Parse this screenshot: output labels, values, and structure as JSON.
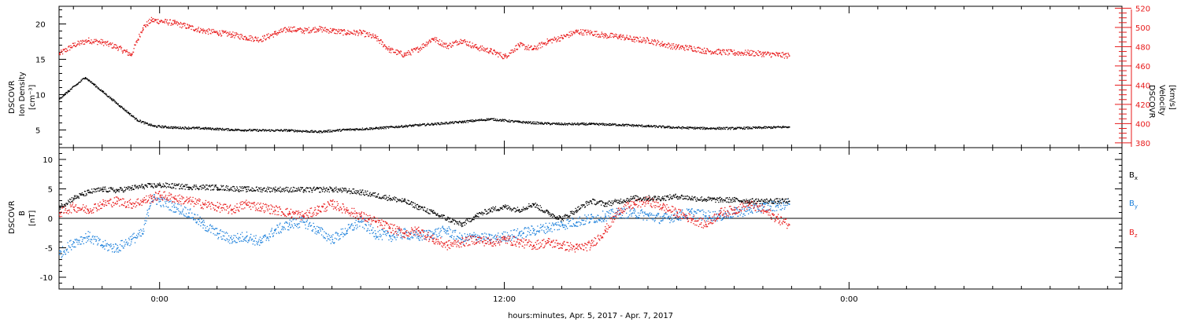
{
  "figure": {
    "xlabel": "hours:minutes, Apr.  5, 2017 - Apr.  7, 2017",
    "x_tick_labels": [
      "0:00",
      "12:00",
      "0:00"
    ]
  },
  "colors": {
    "black": "#000000",
    "red": "#e8191a",
    "blue": "#1a7fdb"
  },
  "chart_data": [
    {
      "type": "scatter",
      "panel": "top",
      "xlim_hours": [
        -3.5,
        33.5
      ],
      "x_ticks": [
        0,
        12,
        24
      ],
      "grid": false,
      "left_axis": {
        "label_lines": [
          "DSCOVR",
          "Ion Density",
          "[cm⁻³]"
        ],
        "ylim": [
          2.5,
          22.5
        ],
        "ticks": [
          5,
          10,
          15,
          20
        ],
        "color": "#000000"
      },
      "right_axis": {
        "label_lines": [
          "DSCOVR",
          "Velocity",
          "[km/s]"
        ],
        "ylim": [
          375,
          522
        ],
        "ticks": [
          380,
          400,
          420,
          440,
          460,
          480,
          500,
          520
        ],
        "color": "#e8191a"
      },
      "series": [
        {
          "axis": "left",
          "color": "#000000",
          "x": [
            -3.5,
            -3.2,
            -2.9,
            -2.6,
            -2.3,
            -2.0,
            -1.7,
            -1.4,
            -1.1,
            -0.8,
            -0.5,
            -0.2,
            0.5,
            1.5,
            2.5,
            3.5,
            4.5,
            5.5,
            6.5,
            7.5,
            8.5,
            9.5,
            10.5,
            11.5,
            12.5,
            13.3,
            14.0,
            15.0,
            16.0,
            17.0,
            18.0,
            19.0,
            20.0,
            21.0,
            21.9
          ],
          "y": [
            9.5,
            10.5,
            11.5,
            12.5,
            11.5,
            10.5,
            9.5,
            8.5,
            7.5,
            6.5,
            6.0,
            5.6,
            5.4,
            5.3,
            5.1,
            5.0,
            5.0,
            4.8,
            5.1,
            5.3,
            5.6,
            5.9,
            6.2,
            6.6,
            6.2,
            6.0,
            5.9,
            5.9,
            5.8,
            5.6,
            5.4,
            5.3,
            5.3,
            5.4,
            5.5
          ]
        },
        {
          "axis": "right",
          "color": "#e8191a",
          "x": [
            -3.5,
            -3.0,
            -2.5,
            -2.0,
            -1.5,
            -1.0,
            -0.6,
            -0.3,
            0.0,
            0.5,
            1.0,
            1.5,
            2.0,
            2.5,
            3.0,
            3.5,
            4.0,
            4.5,
            5.0,
            5.5,
            6.0,
            6.5,
            7.0,
            7.5,
            8.0,
            8.5,
            9.0,
            9.5,
            10.0,
            10.5,
            11.0,
            11.5,
            12.0,
            12.5,
            13.0,
            13.5,
            14.0,
            14.5,
            15.0,
            15.5,
            16.0,
            16.5,
            17.0,
            17.5,
            18.0,
            18.5,
            19.0,
            19.5,
            20.0,
            20.5,
            21.0,
            21.5,
            21.9
          ],
          "y": [
            473,
            482,
            487,
            485,
            480,
            472,
            500,
            508,
            507,
            505,
            501,
            497,
            495,
            493,
            490,
            488,
            494,
            499,
            497,
            499,
            497,
            495,
            495,
            490,
            477,
            472,
            478,
            489,
            481,
            487,
            480,
            476,
            470,
            482,
            478,
            486,
            490,
            496,
            495,
            492,
            491,
            488,
            487,
            483,
            480,
            479,
            476,
            475,
            474,
            474,
            473,
            472,
            471
          ]
        }
      ]
    },
    {
      "type": "scatter",
      "panel": "bottom",
      "xlim_hours": [
        -3.5,
        33.5
      ],
      "x_ticks": [
        0,
        12,
        24
      ],
      "grid": false,
      "zero_line": true,
      "left_axis": {
        "label_lines": [
          "DSCOVR",
          "B",
          "[nT]"
        ],
        "ylim": [
          -12,
          12
        ],
        "ticks": [
          -10,
          -5,
          0,
          5,
          10
        ],
        "color": "#000000"
      },
      "legend": {
        "placement": "right",
        "entries": [
          {
            "base": "B",
            "sub": "x",
            "color": "#000000"
          },
          {
            "base": "B",
            "sub": "y",
            "color": "#1a7fdb"
          },
          {
            "base": "B",
            "sub": "z",
            "color": "#e8191a"
          }
        ]
      },
      "series": [
        {
          "name": "Bx",
          "color": "#000000",
          "x": [
            -3.5,
            -3.0,
            -2.5,
            -2.0,
            -1.5,
            -1.0,
            -0.6,
            -0.3,
            0.0,
            1.0,
            2.0,
            3.0,
            4.0,
            5.0,
            6.0,
            7.0,
            8.0,
            8.5,
            9.0,
            9.5,
            10.0,
            10.5,
            11.0,
            11.5,
            12.0,
            12.5,
            13.0,
            13.5,
            14.0,
            14.5,
            15.0,
            15.5,
            16.0,
            16.5,
            17.0,
            17.5,
            18.0,
            18.5,
            19.0,
            19.5,
            20.0,
            20.5,
            21.0,
            21.5,
            21.9
          ],
          "y": [
            2.0,
            3.5,
            4.5,
            5.0,
            4.8,
            5.2,
            5.5,
            5.6,
            5.7,
            5.4,
            5.3,
            5.0,
            5.0,
            4.9,
            5.0,
            4.5,
            3.5,
            3.0,
            2.0,
            1.0,
            0.0,
            -1.0,
            0.5,
            1.5,
            2.0,
            1.5,
            2.5,
            1.0,
            0.0,
            1.5,
            3.0,
            2.5,
            3.0,
            3.5,
            3.5,
            3.5,
            3.8,
            3.5,
            3.3,
            3.2,
            3.2,
            3.0,
            3.0,
            3.0,
            3.0
          ]
        },
        {
          "name": "By",
          "color": "#1a7fdb",
          "x": [
            -3.5,
            -3.0,
            -2.5,
            -2.0,
            -1.5,
            -1.0,
            -0.6,
            -0.3,
            0.0,
            0.5,
            1.0,
            1.5,
            2.0,
            2.5,
            3.0,
            3.5,
            4.0,
            4.5,
            5.0,
            5.5,
            6.0,
            6.5,
            7.0,
            7.5,
            8.0,
            8.5,
            9.0,
            9.5,
            10.0,
            10.5,
            11.0,
            11.5,
            12.0,
            12.5,
            13.0,
            13.5,
            14.0,
            14.5,
            15.0,
            15.5,
            16.0,
            16.5,
            17.0,
            17.5,
            18.0,
            18.5,
            19.0,
            19.5,
            20.0,
            20.5,
            21.0,
            21.5,
            21.9
          ],
          "y": [
            -6.0,
            -4.0,
            -3.0,
            -4.5,
            -5.0,
            -3.5,
            -2.5,
            3.5,
            3.0,
            2.0,
            1.0,
            -1.0,
            -2.5,
            -3.5,
            -3.0,
            -4.0,
            -2.0,
            -1.0,
            -0.5,
            -2.0,
            -3.5,
            -2.0,
            -0.5,
            -2.5,
            -3.0,
            -2.5,
            -3.0,
            -2.5,
            -2.0,
            -3.5,
            -3.0,
            -3.5,
            -3.0,
            -2.5,
            -2.0,
            -1.5,
            -1.0,
            -0.5,
            0.0,
            0.5,
            1.0,
            1.0,
            0.5,
            0.0,
            0.5,
            1.0,
            0.5,
            0.5,
            1.0,
            1.5,
            2.0,
            2.3,
            2.5
          ]
        },
        {
          "name": "Bz",
          "color": "#e8191a",
          "x": [
            -3.5,
            -3.0,
            -2.5,
            -2.0,
            -1.5,
            -1.0,
            -0.6,
            -0.3,
            0.0,
            0.5,
            1.0,
            1.5,
            2.0,
            2.5,
            3.0,
            3.5,
            4.0,
            4.5,
            5.0,
            5.5,
            6.0,
            6.5,
            7.0,
            7.5,
            8.0,
            8.5,
            9.0,
            9.5,
            10.0,
            10.5,
            11.0,
            11.5,
            12.0,
            12.5,
            13.0,
            13.5,
            14.0,
            14.5,
            15.0,
            15.5,
            16.0,
            16.5,
            17.0,
            17.5,
            18.0,
            18.5,
            19.0,
            19.5,
            20.0,
            20.5,
            21.0,
            21.5,
            21.9
          ],
          "y": [
            1.0,
            2.0,
            1.5,
            2.5,
            3.0,
            2.5,
            3.0,
            3.5,
            4.0,
            3.5,
            3.0,
            2.5,
            2.0,
            1.5,
            2.5,
            2.0,
            1.5,
            1.0,
            0.5,
            1.5,
            2.5,
            1.5,
            0.5,
            -0.5,
            -1.5,
            -2.5,
            -2.0,
            -3.5,
            -4.5,
            -4.0,
            -3.5,
            -4.0,
            -3.5,
            -4.0,
            -4.5,
            -4.0,
            -4.5,
            -5.0,
            -4.5,
            -2.0,
            1.5,
            2.5,
            3.0,
            2.0,
            1.0,
            0.0,
            -1.0,
            1.0,
            1.5,
            2.5,
            1.5,
            0.0,
            -1.0
          ]
        }
      ]
    }
  ]
}
